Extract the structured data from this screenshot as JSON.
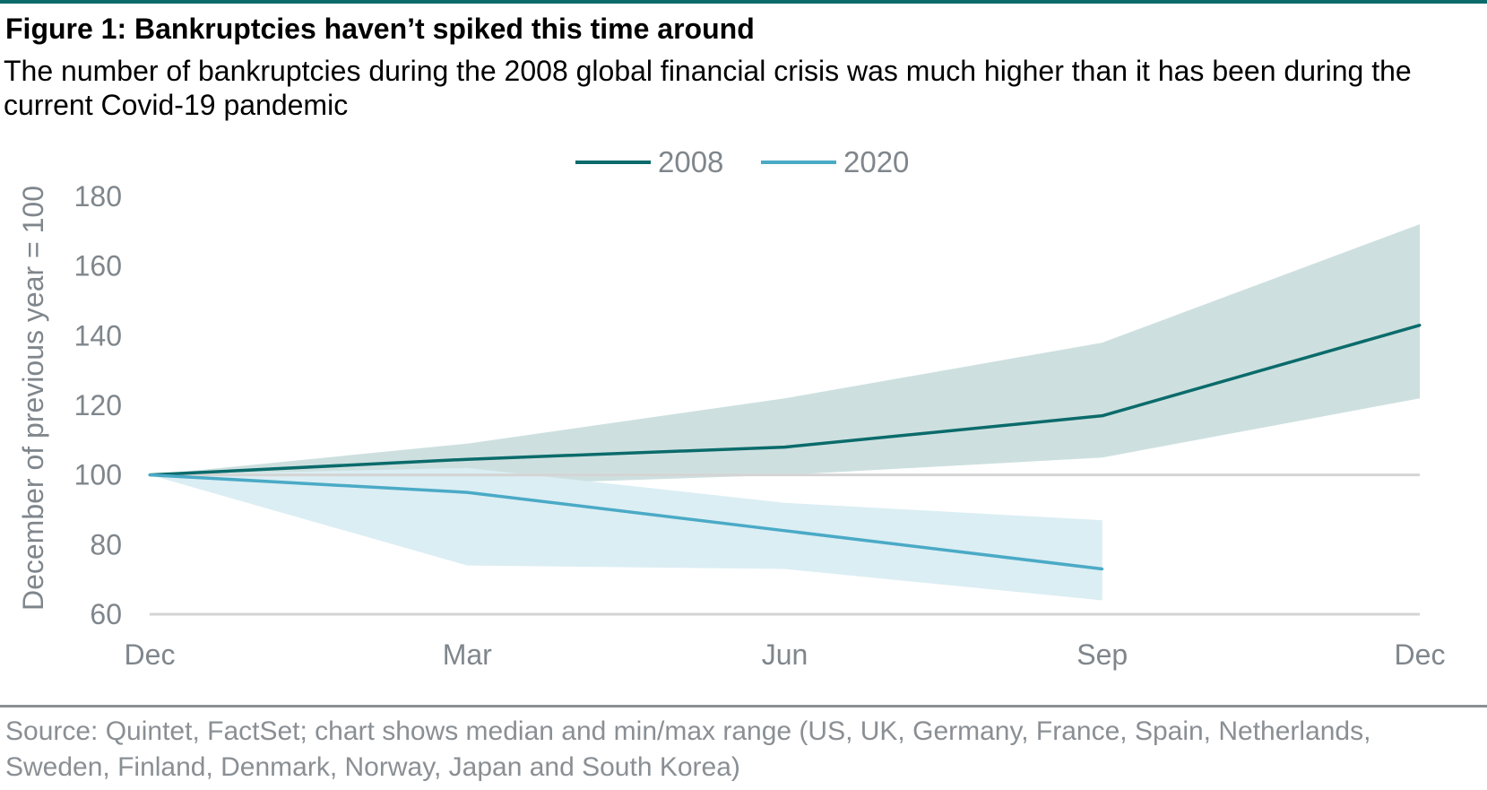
{
  "header": {
    "title": "Figure 1: Bankruptcies haven’t spiked this time around",
    "subtitle": "The number of bankruptcies during the 2008 global financial crisis was much higher than it has been during the current Covid-19 pandemic"
  },
  "footer": {
    "source": "Source: Quintet, FactSet; chart shows median and min/max range (US, UK, Germany, France, Spain, Netherlands, Sweden, Finland, Denmark, Norway, Japan and South Korea)"
  },
  "chart_data": {
    "type": "line",
    "x": [
      "Dec",
      "Mar",
      "Jun",
      "Sep",
      "Dec"
    ],
    "ylabel": "December of previous year = 100",
    "ylim": [
      60,
      180
    ],
    "yticks": [
      60,
      80,
      100,
      120,
      140,
      160,
      180
    ],
    "reference_line": 100,
    "legend_position": "top-center",
    "grid": false,
    "series": [
      {
        "name": "2008",
        "color": "#0b6b6b",
        "band_color": "#cde0df",
        "median": [
          100,
          104.5,
          108,
          117,
          143
        ],
        "min": [
          100,
          97,
          100,
          105,
          122
        ],
        "max": [
          100,
          109,
          122,
          138,
          172
        ]
      },
      {
        "name": "2020",
        "color": "#4aaac6",
        "band_color": "#dbeef4",
        "median": [
          100,
          95,
          84,
          73
        ],
        "min": [
          100,
          74,
          73,
          64
        ],
        "max": [
          100,
          102,
          92,
          87
        ]
      }
    ]
  }
}
